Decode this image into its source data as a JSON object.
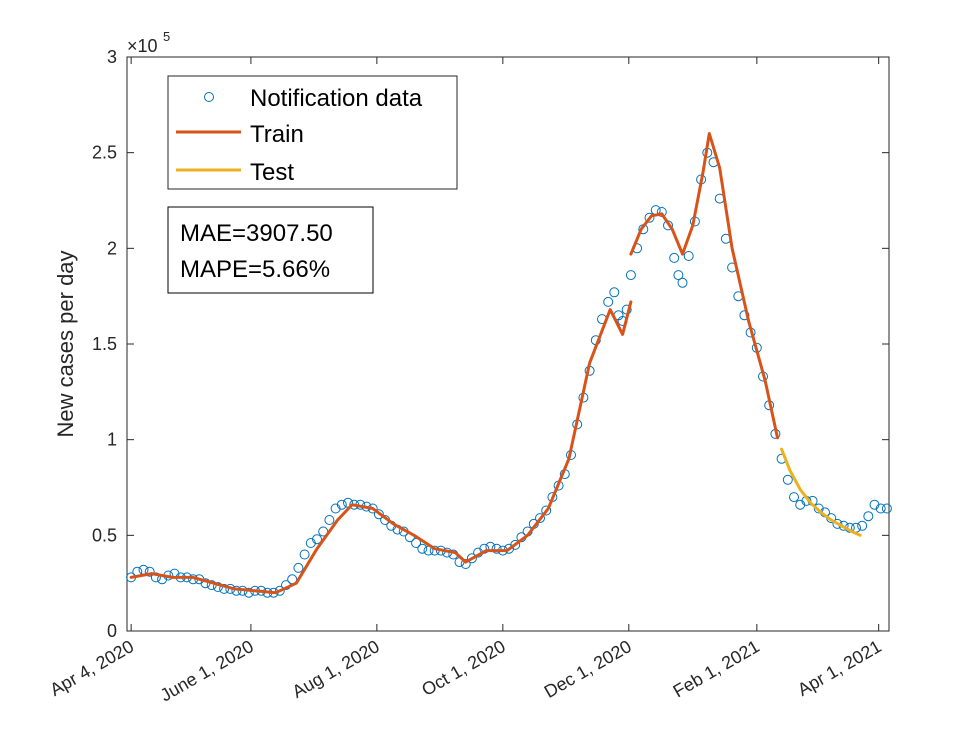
{
  "chart_data": {
    "type": "line",
    "title": "",
    "xlabel": "",
    "ylabel": "New cases per day",
    "y_exponent_label": "×10",
    "y_exponent_power": "5",
    "ylim": [
      0,
      300000
    ],
    "xlim": [
      "2020-04-02",
      "2021-04-06"
    ],
    "grid": false,
    "legend_position": "top-left",
    "y_ticks": [
      {
        "value": 0,
        "label": "0"
      },
      {
        "value": 50000,
        "label": "0.5"
      },
      {
        "value": 100000,
        "label": "1"
      },
      {
        "value": 150000,
        "label": "1.5"
      },
      {
        "value": 200000,
        "label": "2"
      },
      {
        "value": 250000,
        "label": "2.5"
      },
      {
        "value": 300000,
        "label": "3"
      }
    ],
    "x_ticks": [
      {
        "date": "2020-04-04",
        "label": "Apr 4, 2020"
      },
      {
        "date": "2020-06-01",
        "label": "June 1, 2020"
      },
      {
        "date": "2020-08-01",
        "label": "Aug 1, 2020"
      },
      {
        "date": "2020-10-01",
        "label": "Oct 1, 2020"
      },
      {
        "date": "2020-12-01",
        "label": "Dec 1, 2020"
      },
      {
        "date": "2021-02-01",
        "label": "Feb 1, 2021"
      },
      {
        "date": "2021-04-01",
        "label": "Apr 1, 2021"
      }
    ],
    "annotation": {
      "mae": "MAE=3907.50",
      "mape": "MAPE=5.66%"
    },
    "series": [
      {
        "name": "Notification data",
        "style": "markers",
        "color": "#0072BD",
        "points": [
          [
            "2020-04-04",
            28000
          ],
          [
            "2020-04-07",
            31000
          ],
          [
            "2020-04-10",
            32000
          ],
          [
            "2020-04-13",
            31000
          ],
          [
            "2020-04-16",
            28000
          ],
          [
            "2020-04-19",
            27000
          ],
          [
            "2020-04-22",
            29000
          ],
          [
            "2020-04-25",
            30000
          ],
          [
            "2020-04-28",
            28000
          ],
          [
            "2020-05-01",
            28000
          ],
          [
            "2020-05-04",
            27000
          ],
          [
            "2020-05-07",
            27000
          ],
          [
            "2020-05-10",
            25000
          ],
          [
            "2020-05-13",
            24000
          ],
          [
            "2020-05-16",
            23000
          ],
          [
            "2020-05-19",
            22000
          ],
          [
            "2020-05-22",
            22000
          ],
          [
            "2020-05-25",
            21000
          ],
          [
            "2020-05-28",
            21000
          ],
          [
            "2020-05-31",
            20000
          ],
          [
            "2020-06-03",
            21000
          ],
          [
            "2020-06-06",
            21000
          ],
          [
            "2020-06-09",
            20000
          ],
          [
            "2020-06-12",
            20000
          ],
          [
            "2020-06-15",
            21000
          ],
          [
            "2020-06-18",
            24000
          ],
          [
            "2020-06-21",
            27000
          ],
          [
            "2020-06-24",
            33000
          ],
          [
            "2020-06-27",
            40000
          ],
          [
            "2020-06-30",
            46000
          ],
          [
            "2020-07-03",
            48000
          ],
          [
            "2020-07-06",
            52000
          ],
          [
            "2020-07-09",
            58000
          ],
          [
            "2020-07-12",
            64000
          ],
          [
            "2020-07-15",
            66000
          ],
          [
            "2020-07-18",
            67000
          ],
          [
            "2020-07-21",
            66000
          ],
          [
            "2020-07-24",
            66000
          ],
          [
            "2020-07-27",
            65000
          ],
          [
            "2020-07-30",
            64000
          ],
          [
            "2020-08-02",
            61000
          ],
          [
            "2020-08-05",
            58000
          ],
          [
            "2020-08-08",
            55000
          ],
          [
            "2020-08-11",
            53000
          ],
          [
            "2020-08-14",
            52000
          ],
          [
            "2020-08-17",
            49000
          ],
          [
            "2020-08-20",
            46000
          ],
          [
            "2020-08-23",
            43000
          ],
          [
            "2020-08-26",
            42000
          ],
          [
            "2020-08-29",
            42000
          ],
          [
            "2020-09-01",
            42000
          ],
          [
            "2020-09-04",
            41000
          ],
          [
            "2020-09-07",
            40000
          ],
          [
            "2020-09-10",
            36000
          ],
          [
            "2020-09-13",
            35000
          ],
          [
            "2020-09-16",
            38000
          ],
          [
            "2020-09-19",
            41000
          ],
          [
            "2020-09-22",
            43000
          ],
          [
            "2020-09-25",
            44000
          ],
          [
            "2020-09-28",
            43000
          ],
          [
            "2020-10-01",
            42000
          ],
          [
            "2020-10-04",
            43000
          ],
          [
            "2020-10-07",
            45000
          ],
          [
            "2020-10-10",
            49000
          ],
          [
            "2020-10-13",
            52000
          ],
          [
            "2020-10-16",
            56000
          ],
          [
            "2020-10-19",
            59000
          ],
          [
            "2020-10-22",
            63000
          ],
          [
            "2020-10-25",
            70000
          ],
          [
            "2020-10-28",
            76000
          ],
          [
            "2020-10-31",
            82000
          ],
          [
            "2020-11-03",
            92000
          ],
          [
            "2020-11-06",
            108000
          ],
          [
            "2020-11-09",
            122000
          ],
          [
            "2020-11-12",
            136000
          ],
          [
            "2020-11-15",
            152000
          ],
          [
            "2020-11-18",
            163000
          ],
          [
            "2020-11-21",
            172000
          ],
          [
            "2020-11-24",
            177000
          ],
          [
            "2020-11-26",
            165000
          ],
          [
            "2020-11-28",
            162000
          ],
          [
            "2020-11-30",
            168000
          ],
          [
            "2020-12-02",
            186000
          ],
          [
            "2020-12-05",
            200000
          ],
          [
            "2020-12-08",
            210000
          ],
          [
            "2020-12-11",
            216000
          ],
          [
            "2020-12-14",
            220000
          ],
          [
            "2020-12-17",
            219000
          ],
          [
            "2020-12-20",
            212000
          ],
          [
            "2020-12-23",
            195000
          ],
          [
            "2020-12-25",
            186000
          ],
          [
            "2020-12-27",
            182000
          ],
          [
            "2020-12-30",
            196000
          ],
          [
            "2021-01-02",
            214000
          ],
          [
            "2021-01-05",
            236000
          ],
          [
            "2021-01-08",
            250000
          ],
          [
            "2021-01-11",
            245000
          ],
          [
            "2021-01-14",
            226000
          ],
          [
            "2021-01-17",
            205000
          ],
          [
            "2021-01-20",
            190000
          ],
          [
            "2021-01-23",
            175000
          ],
          [
            "2021-01-26",
            165000
          ],
          [
            "2021-01-29",
            156000
          ],
          [
            "2021-02-01",
            148000
          ],
          [
            "2021-02-04",
            133000
          ],
          [
            "2021-02-07",
            118000
          ],
          [
            "2021-02-10",
            103000
          ],
          [
            "2021-02-13",
            90000
          ],
          [
            "2021-02-16",
            79000
          ],
          [
            "2021-02-19",
            70000
          ],
          [
            "2021-02-22",
            66000
          ],
          [
            "2021-02-25",
            68000
          ],
          [
            "2021-02-28",
            68000
          ],
          [
            "2021-03-03",
            64000
          ],
          [
            "2021-03-06",
            62000
          ],
          [
            "2021-03-09",
            59000
          ],
          [
            "2021-03-12",
            56000
          ],
          [
            "2021-03-15",
            55000
          ],
          [
            "2021-03-18",
            54000
          ],
          [
            "2021-03-21",
            54000
          ],
          [
            "2021-03-24",
            55000
          ],
          [
            "2021-03-27",
            60000
          ],
          [
            "2021-03-30",
            66000
          ],
          [
            "2021-04-02",
            64000
          ],
          [
            "2021-04-05",
            64000
          ]
        ]
      },
      {
        "name": "Train",
        "style": "line",
        "color": "#D95319",
        "segments": [
          [
            [
              "2020-04-04",
              28000
            ],
            [
              "2020-04-14",
              30000
            ],
            [
              "2020-04-24",
              28000
            ],
            [
              "2020-05-04",
              28000
            ],
            [
              "2020-05-14",
              25000
            ],
            [
              "2020-05-24",
              22000
            ],
            [
              "2020-06-03",
              21000
            ],
            [
              "2020-06-13",
              20000
            ],
            [
              "2020-06-23",
              25000
            ],
            [
              "2020-07-03",
              43000
            ],
            [
              "2020-07-13",
              58000
            ],
            [
              "2020-07-20",
              66000
            ],
            [
              "2020-07-30",
              64000
            ],
            [
              "2020-08-09",
              56000
            ],
            [
              "2020-08-19",
              50000
            ],
            [
              "2020-08-29",
              43000
            ],
            [
              "2020-09-08",
              41000
            ],
            [
              "2020-09-13",
              36000
            ],
            [
              "2020-09-23",
              42000
            ],
            [
              "2020-10-03",
              42000
            ],
            [
              "2020-10-13",
              50000
            ],
            [
              "2020-10-23",
              64000
            ],
            [
              "2020-11-02",
              90000
            ],
            [
              "2020-11-12",
              140000
            ],
            [
              "2020-11-22",
              168000
            ],
            [
              "2020-11-28",
              155000
            ],
            [
              "2020-12-02",
              172000
            ]
          ],
          [
            [
              "2020-12-02",
              197000
            ],
            [
              "2020-12-07",
              210000
            ],
            [
              "2020-12-12",
              217000
            ],
            [
              "2020-12-17",
              218000
            ],
            [
              "2020-12-22",
              210000
            ],
            [
              "2020-12-27",
              197000
            ],
            [
              "2021-01-01",
              212000
            ],
            [
              "2021-01-06",
              240000
            ],
            [
              "2021-01-09",
              260000
            ],
            [
              "2021-01-14",
              242000
            ],
            [
              "2021-01-20",
              200000
            ],
            [
              "2021-01-28",
              162000
            ],
            [
              "2021-02-05",
              131000
            ],
            [
              "2021-02-11",
              101000
            ]
          ]
        ]
      },
      {
        "name": "Test",
        "style": "line",
        "color": "#EDB120",
        "segments": [
          [
            [
              "2021-02-13",
              95000
            ],
            [
              "2021-02-17",
              84000
            ],
            [
              "2021-02-22",
              74000
            ],
            [
              "2021-02-27",
              67000
            ],
            [
              "2021-03-04",
              62000
            ],
            [
              "2021-03-09",
              58000
            ],
            [
              "2021-03-14",
              55000
            ],
            [
              "2021-03-19",
              52000
            ],
            [
              "2021-03-23",
              50000
            ]
          ]
        ]
      }
    ]
  }
}
